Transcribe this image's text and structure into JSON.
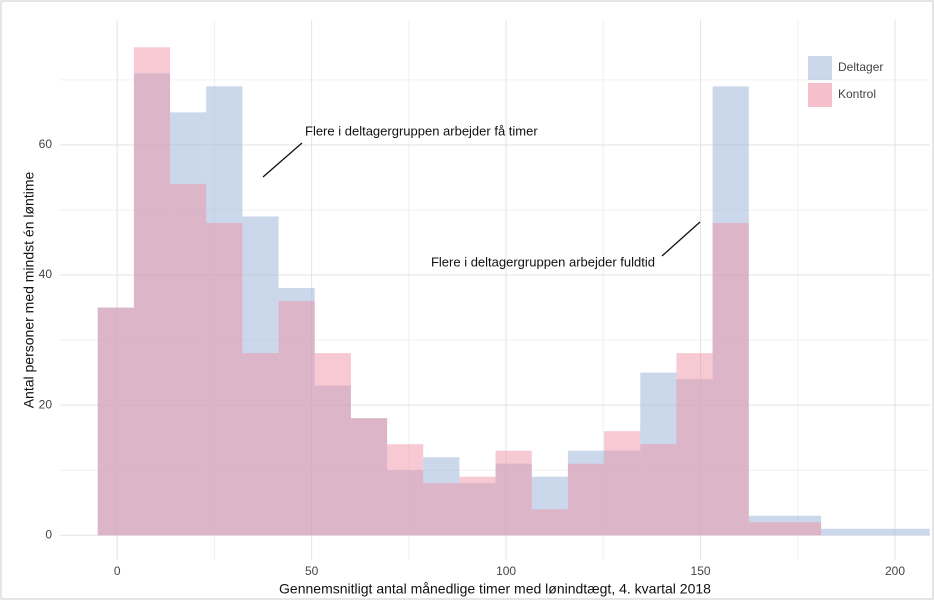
{
  "chart_data": {
    "type": "histogram",
    "x_label": "Gennemsnitligt antal månedlige timer med lønindtægt, 4. kvartal 2018",
    "y_label": "Antal personer med mindst én løntime",
    "bins": [
      -5,
      4.3,
      13.6,
      22.9,
      32.2,
      41.5,
      50.8,
      60.1,
      69.4,
      78.7,
      88,
      97.3,
      106.6,
      115.9,
      125.2,
      134.5,
      143.8,
      153.1,
      162.4,
      171.7,
      181,
      190.3,
      199.6,
      208.9
    ],
    "series": [
      {
        "name": "Deltager",
        "color": "#a9bcdc",
        "values": [
          35,
          71,
          65,
          69,
          49,
          38,
          23,
          18,
          10,
          12,
          8,
          11,
          9,
          13,
          13,
          25,
          24,
          69,
          3,
          3,
          1,
          1,
          1
        ]
      },
      {
        "name": "Kontrol",
        "color": "#ee94a8",
        "values": [
          35,
          75,
          54,
          48,
          28,
          36,
          28,
          18,
          14,
          8,
          9,
          13,
          4,
          11,
          16,
          14,
          28,
          48,
          2,
          2,
          0,
          0,
          0
        ]
      }
    ],
    "annotations": [
      "Flere i deltagergruppen arbejder få timer",
      "Flere i deltagergruppen arbejder fuldtid"
    ],
    "xlim": [
      -14.7,
      209
    ],
    "ylim": [
      -3.8,
      79.2
    ],
    "xticks": [
      0,
      50,
      100,
      150,
      200
    ],
    "yticks": [
      0,
      20,
      40,
      60
    ],
    "grid": true,
    "legend": "top-right"
  }
}
